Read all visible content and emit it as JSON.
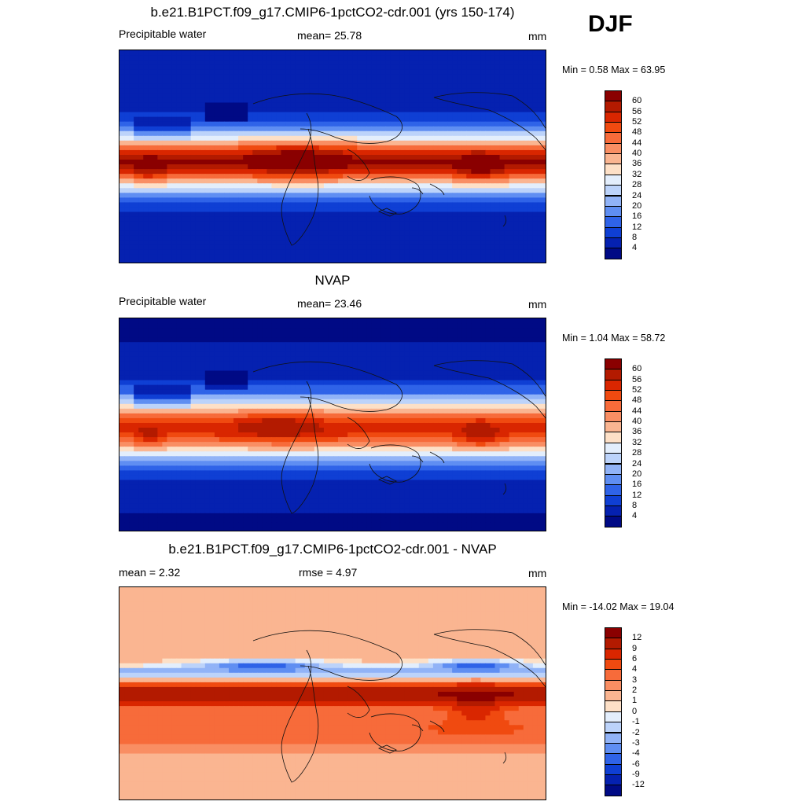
{
  "season": "DJF",
  "panels": [
    {
      "title": "b.e21.B1PCT.f09_g17.CMIP6-1pctCO2-cdr.001 (yrs 150-174)",
      "left": "Precipitable water",
      "center": "mean=  25.78",
      "units": "mm",
      "minmax": "Min =   0.58 Max =  63.95",
      "scale": "model",
      "legend": {
        "labels": [
          "60",
          "56",
          "52",
          "48",
          "44",
          "40",
          "36",
          "32",
          "28",
          "24",
          "20",
          "16",
          "12",
          "8",
          "4"
        ],
        "colors": [
          "#8a0000",
          "#b31a00",
          "#d92600",
          "#f04a10",
          "#f76b3a",
          "#f98e63",
          "#fab591",
          "#fde0c7",
          "#e3eefc",
          "#bcd3fa",
          "#91b3f7",
          "#5f8ef2",
          "#2f63e8",
          "#0f3fd4",
          "#0521b0",
          "#000a85"
        ]
      }
    },
    {
      "title": "NVAP",
      "left": "Precipitable water",
      "center": "mean=  23.46",
      "units": "mm",
      "minmax": "Min =   1.04 Max =  58.72",
      "scale": "obs",
      "legend": {
        "labels": [
          "60",
          "56",
          "52",
          "48",
          "44",
          "40",
          "36",
          "32",
          "28",
          "24",
          "20",
          "16",
          "12",
          "8",
          "4"
        ],
        "colors": [
          "#8a0000",
          "#b31a00",
          "#d92600",
          "#f04a10",
          "#f76b3a",
          "#f98e63",
          "#fab591",
          "#fde0c7",
          "#e3eefc",
          "#bcd3fa",
          "#91b3f7",
          "#5f8ef2",
          "#2f63e8",
          "#0f3fd4",
          "#0521b0",
          "#000a85"
        ]
      }
    },
    {
      "title": "b.e21.B1PCT.f09_g17.CMIP6-1pctCO2-cdr.001 - NVAP",
      "left": "mean =   2.32",
      "center": "rmse =   4.97",
      "units": "mm",
      "minmax": "Min = -14.02 Max =  19.04",
      "scale": "diff",
      "legend": {
        "labels": [
          "12",
          "9",
          "6",
          "4",
          "3",
          "2",
          "1",
          "0",
          "-1",
          "-2",
          "-3",
          "-4",
          "-6",
          "-9",
          "-12"
        ],
        "colors": [
          "#8a0000",
          "#b31a00",
          "#d92600",
          "#f04a10",
          "#f76b3a",
          "#f98e63",
          "#fab591",
          "#fde0c7",
          "#e3eefc",
          "#bcd3fa",
          "#91b3f7",
          "#5f8ef2",
          "#2f63e8",
          "#0f3fd4",
          "#0521b0",
          "#000a85"
        ]
      }
    }
  ]
}
